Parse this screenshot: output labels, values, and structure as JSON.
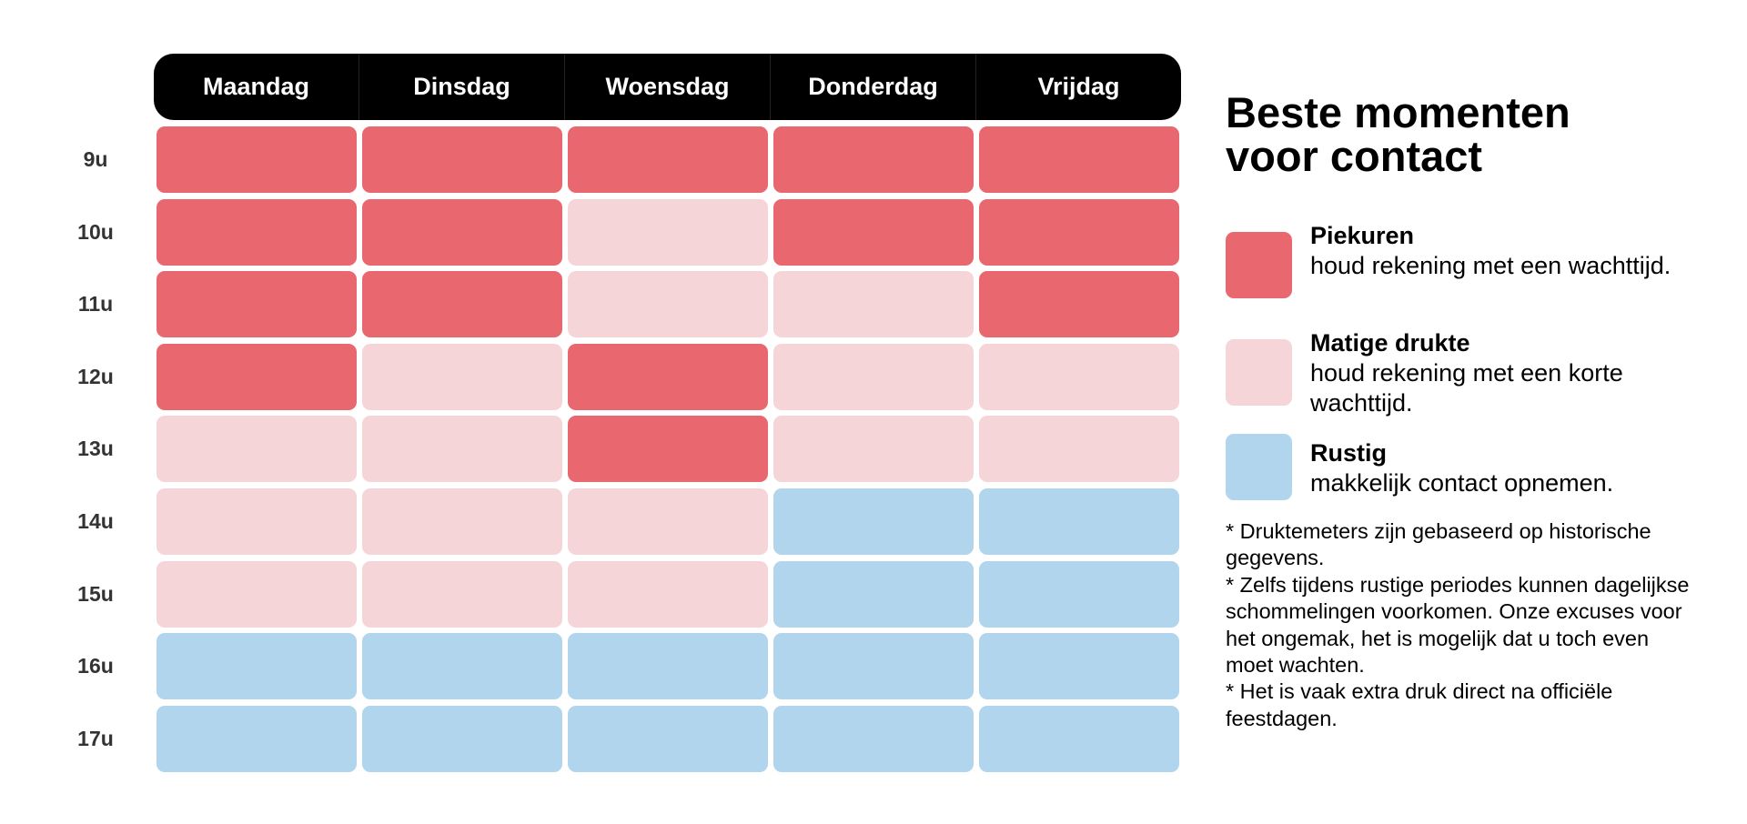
{
  "days": [
    "Maandag",
    "Dinsdag",
    "Woensdag",
    "Donderdag",
    "Vrijdag"
  ],
  "hours": [
    "9u",
    "10u",
    "11u",
    "12u",
    "13u",
    "14u",
    "15u",
    "16u",
    "17u"
  ],
  "colors": {
    "piek": "#E96870",
    "matig": "#F5D5D8",
    "rustig": "#B2D5EE"
  },
  "grid": [
    [
      "piek",
      "piek",
      "piek",
      "piek",
      "piek"
    ],
    [
      "piek",
      "piek",
      "matig",
      "piek",
      "piek"
    ],
    [
      "piek",
      "piek",
      "matig",
      "matig",
      "piek"
    ],
    [
      "piek",
      "matig",
      "piek",
      "matig",
      "matig"
    ],
    [
      "matig",
      "matig",
      "piek",
      "matig",
      "matig"
    ],
    [
      "matig",
      "matig",
      "matig",
      "rustig",
      "rustig"
    ],
    [
      "matig",
      "matig",
      "matig",
      "rustig",
      "rustig"
    ],
    [
      "rustig",
      "rustig",
      "rustig",
      "rustig",
      "rustig"
    ],
    [
      "rustig",
      "rustig",
      "rustig",
      "rustig",
      "rustig"
    ]
  ],
  "legend": {
    "title_line1": "Beste momenten",
    "title_line2": "voor contact",
    "items": [
      {
        "key": "piek",
        "label": "Piekuren",
        "desc": "houd rekening met een wachttijd."
      },
      {
        "key": "matig",
        "label": "Matige drukte",
        "desc": "houd rekening met een korte wachttijd."
      },
      {
        "key": "rustig",
        "label": "Rustig",
        "desc": "makkelijk contact opnemen."
      }
    ]
  },
  "notes": [
    "* Druktemeters zijn gebaseerd op historische gegevens.",
    "* Zelfs tijdens rustige periodes kunnen dagelijkse schommelingen voorkomen. Onze excuses voor het ongemak, het is mogelijk dat u toch even moet wachten.",
    "* Het is vaak extra druk direct na officiële feestdagen."
  ]
}
